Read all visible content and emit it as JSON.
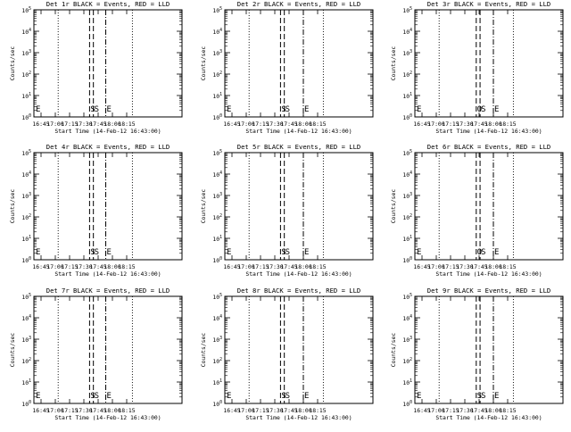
{
  "chart_data": [
    {
      "type": "line",
      "title": "Det 1r BLACK = Events, RED = LLD",
      "ylabel": "Counts/sec",
      "xlabel": "Start Time (14-Feb-12 16:43:00)",
      "xticks": [
        "16:45",
        "17:00",
        "17:15",
        "17:30",
        "17:45",
        "18:00",
        "18:15"
      ],
      "yticks": [
        {
          "base": "10",
          "exp": "0"
        },
        {
          "base": "10",
          "exp": "1"
        },
        {
          "base": "10",
          "exp": "2"
        },
        {
          "base": "10",
          "exp": "3"
        },
        {
          "base": "10",
          "exp": "4"
        },
        {
          "base": "10",
          "exp": "5"
        }
      ],
      "ylim_log10": [
        0,
        5
      ],
      "xlim_minutes": [
        0,
        100
      ],
      "dotted_markers": [
        20,
        98
      ],
      "markers": [
        {
          "label": "E",
          "t": 0
        },
        {
          "label": "S",
          "t": 53,
          "style": "dashed"
        },
        {
          "label": "S",
          "t": 57,
          "style": "dashed"
        },
        {
          "label": "E",
          "t": 70,
          "style": "dashdot"
        }
      ],
      "series": []
    },
    {
      "type": "line",
      "title": "Det 2r BLACK = Events, RED = LLD",
      "ylabel": "Counts/sec",
      "xlabel": "Start Time (14-Feb-12 16:43:00)",
      "xticks": [
        "16:45",
        "17:00",
        "17:15",
        "17:30",
        "17:45",
        "18:00",
        "18:15"
      ],
      "yticks": [
        {
          "base": "10",
          "exp": "0"
        },
        {
          "base": "10",
          "exp": "1"
        },
        {
          "base": "10",
          "exp": "2"
        },
        {
          "base": "10",
          "exp": "3"
        },
        {
          "base": "10",
          "exp": "4"
        },
        {
          "base": "10",
          "exp": "5"
        }
      ],
      "ylim_log10": [
        0,
        5
      ],
      "xlim_minutes": [
        0,
        100
      ],
      "dotted_markers": [
        20,
        98
      ],
      "markers": [
        {
          "label": "E",
          "t": 0
        },
        {
          "label": "S",
          "t": 53,
          "style": "dashed"
        },
        {
          "label": "S",
          "t": 57,
          "style": "dashed"
        },
        {
          "label": "E",
          "t": 77,
          "style": "dashdot"
        }
      ],
      "series": []
    },
    {
      "type": "line",
      "title": "Det 3r BLACK = Events, RED = LLD",
      "ylabel": "Counts/sec",
      "xlabel": "Start Time (14-Feb-12 16:43:00)",
      "xticks": [
        "16:45",
        "17:00",
        "17:15",
        "17:30",
        "17:45",
        "18:00",
        "18:15"
      ],
      "yticks": [
        {
          "base": "10",
          "exp": "0"
        },
        {
          "base": "10",
          "exp": "1"
        },
        {
          "base": "10",
          "exp": "2"
        },
        {
          "base": "10",
          "exp": "3"
        },
        {
          "base": "10",
          "exp": "4"
        },
        {
          "base": "10",
          "exp": "5"
        }
      ],
      "ylim_log10": [
        0,
        5
      ],
      "xlim_minutes": [
        0,
        100
      ],
      "dotted_markers": [
        20,
        98
      ],
      "markers": [
        {
          "label": "E",
          "t": 0
        },
        {
          "label": "O",
          "t": 59,
          "style": "dashed"
        },
        {
          "label": "S",
          "t": 63,
          "style": "dashed"
        },
        {
          "label": "E",
          "t": 77,
          "style": "dashdot"
        }
      ],
      "series": []
    },
    {
      "type": "line",
      "title": "Det 4r BLACK = Events, RED = LLD",
      "ylabel": "Counts/sec",
      "xlabel": "Start Time (14-Feb-12 16:43:00)",
      "xticks": [
        "16:45",
        "17:00",
        "17:15",
        "17:30",
        "17:45",
        "18:00",
        "18:15"
      ],
      "yticks": [
        {
          "base": "10",
          "exp": "0"
        },
        {
          "base": "10",
          "exp": "1"
        },
        {
          "base": "10",
          "exp": "2"
        },
        {
          "base": "10",
          "exp": "3"
        },
        {
          "base": "10",
          "exp": "4"
        },
        {
          "base": "10",
          "exp": "5"
        }
      ],
      "ylim_log10": [
        0,
        5
      ],
      "xlim_minutes": [
        0,
        100
      ],
      "dotted_markers": [
        20,
        98
      ],
      "markers": [
        {
          "label": "E",
          "t": 0
        },
        {
          "label": "S",
          "t": 53,
          "style": "dashed"
        },
        {
          "label": "S",
          "t": 57,
          "style": "dashed"
        },
        {
          "label": "E",
          "t": 70,
          "style": "dashdot"
        }
      ],
      "series": []
    },
    {
      "type": "line",
      "title": "Det 5r BLACK = Events, RED = LLD",
      "ylabel": "Counts/sec",
      "xlabel": "Start Time (14-Feb-12 16:43:00)",
      "xticks": [
        "16:45",
        "17:00",
        "17:15",
        "17:30",
        "17:45",
        "18:00",
        "18:15"
      ],
      "yticks": [
        {
          "base": "10",
          "exp": "0"
        },
        {
          "base": "10",
          "exp": "1"
        },
        {
          "base": "10",
          "exp": "2"
        },
        {
          "base": "10",
          "exp": "3"
        },
        {
          "base": "10",
          "exp": "4"
        },
        {
          "base": "10",
          "exp": "5"
        }
      ],
      "ylim_log10": [
        0,
        5
      ],
      "xlim_minutes": [
        0,
        100
      ],
      "dotted_markers": [
        20,
        98
      ],
      "markers": [
        {
          "label": "E",
          "t": 0
        },
        {
          "label": "S",
          "t": 53,
          "style": "dashed"
        },
        {
          "label": "S",
          "t": 57,
          "style": "dashed"
        },
        {
          "label": "E",
          "t": 77,
          "style": "dashdot"
        }
      ],
      "series": []
    },
    {
      "type": "line",
      "title": "Det 6r BLACK = Events, RED = LLD",
      "ylabel": "Counts/sec",
      "xlabel": "Start Time (14-Feb-12 16:43:00)",
      "xticks": [
        "16:45",
        "17:00",
        "17:15",
        "17:30",
        "17:45",
        "18:00",
        "18:15"
      ],
      "yticks": [
        {
          "base": "10",
          "exp": "0"
        },
        {
          "base": "10",
          "exp": "1"
        },
        {
          "base": "10",
          "exp": "2"
        },
        {
          "base": "10",
          "exp": "3"
        },
        {
          "base": "10",
          "exp": "4"
        },
        {
          "base": "10",
          "exp": "5"
        }
      ],
      "ylim_log10": [
        0,
        5
      ],
      "xlim_minutes": [
        0,
        100
      ],
      "dotted_markers": [
        20,
        98
      ],
      "markers": [
        {
          "label": "E",
          "t": 0
        },
        {
          "label": "O",
          "t": 59,
          "style": "dashed"
        },
        {
          "label": "S",
          "t": 63,
          "style": "dashed"
        },
        {
          "label": "E",
          "t": 77,
          "style": "dashdot"
        }
      ],
      "series": []
    },
    {
      "type": "line",
      "title": "Det 7r BLACK = Events, RED = LLD",
      "ylabel": "Counts/sec",
      "xlabel": "Start Time (14-Feb-12 16:43:00)",
      "xticks": [
        "16:45",
        "17:00",
        "17:15",
        "17:30",
        "17:45",
        "18:00",
        "18:15"
      ],
      "yticks": [
        {
          "base": "10",
          "exp": "0"
        },
        {
          "base": "10",
          "exp": "1"
        },
        {
          "base": "10",
          "exp": "2"
        },
        {
          "base": "10",
          "exp": "3"
        },
        {
          "base": "10",
          "exp": "4"
        },
        {
          "base": "10",
          "exp": "5"
        }
      ],
      "ylim_log10": [
        0,
        5
      ],
      "xlim_minutes": [
        0,
        100
      ],
      "dotted_markers": [
        20,
        98
      ],
      "markers": [
        {
          "label": "E",
          "t": 0
        },
        {
          "label": "S",
          "t": 53,
          "style": "dashed"
        },
        {
          "label": "S",
          "t": 57,
          "style": "dashed"
        },
        {
          "label": "E",
          "t": 70,
          "style": "dashdot"
        }
      ],
      "series": []
    },
    {
      "type": "line",
      "title": "Det 8r BLACK = Events, RED = LLD",
      "ylabel": "Counts/sec",
      "xlabel": "Start Time (14-Feb-12 16:43:00)",
      "xticks": [
        "16:45",
        "17:00",
        "17:15",
        "17:30",
        "17:45",
        "18:00",
        "18:15"
      ],
      "yticks": [
        {
          "base": "10",
          "exp": "0"
        },
        {
          "base": "10",
          "exp": "1"
        },
        {
          "base": "10",
          "exp": "2"
        },
        {
          "base": "10",
          "exp": "3"
        },
        {
          "base": "10",
          "exp": "4"
        },
        {
          "base": "10",
          "exp": "5"
        }
      ],
      "ylim_log10": [
        0,
        5
      ],
      "xlim_minutes": [
        0,
        100
      ],
      "dotted_markers": [
        20,
        98
      ],
      "markers": [
        {
          "label": "E",
          "t": 0
        },
        {
          "label": "S",
          "t": 53,
          "style": "dashed"
        },
        {
          "label": "S",
          "t": 57,
          "style": "dashed"
        },
        {
          "label": "E",
          "t": 77,
          "style": "dashdot"
        }
      ],
      "series": []
    },
    {
      "type": "line",
      "title": "Det 9r BLACK = Events, RED = LLD",
      "ylabel": "Counts/sec",
      "xlabel": "Start Time (14-Feb-12 16:43:00)",
      "xticks": [
        "16:45",
        "17:00",
        "17:15",
        "17:30",
        "17:45",
        "18:00",
        "18:15"
      ],
      "yticks": [
        {
          "base": "10",
          "exp": "0"
        },
        {
          "base": "10",
          "exp": "1"
        },
        {
          "base": "10",
          "exp": "2"
        },
        {
          "base": "10",
          "exp": "3"
        },
        {
          "base": "10",
          "exp": "4"
        },
        {
          "base": "10",
          "exp": "5"
        }
      ],
      "ylim_log10": [
        0,
        5
      ],
      "xlim_minutes": [
        0,
        100
      ],
      "dotted_markers": [
        20,
        98
      ],
      "markers": [
        {
          "label": "E",
          "t": 0
        },
        {
          "label": "S",
          "t": 59,
          "style": "dashed"
        },
        {
          "label": "S",
          "t": 63,
          "style": "dashed"
        },
        {
          "label": "E",
          "t": 77,
          "style": "dashdot"
        }
      ],
      "series": []
    }
  ]
}
